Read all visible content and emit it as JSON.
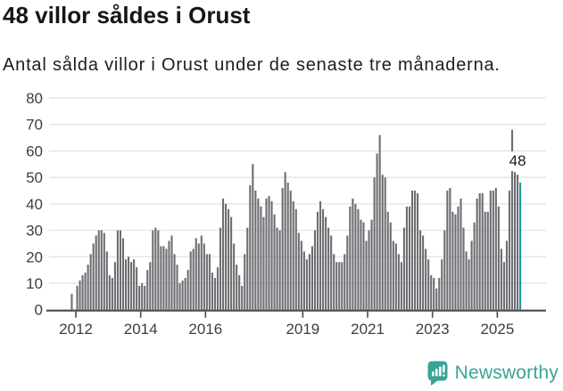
{
  "title": "48 villor såldes i Orust",
  "subtitle": "Antal sålda villor i Orust under de senaste tre månaderna.",
  "logo": {
    "text": "Newsworthy"
  },
  "colors": {
    "bar": "#6d6e72",
    "highlight": "#149b9d",
    "grid": "#e1e1e1",
    "axis": "#4a4a4a",
    "axis_text": "#3d3d3d",
    "logo": "#3ba398",
    "annotation_text": "#1a1a1a"
  },
  "chart_data": {
    "type": "bar",
    "title": "48 villor såldes i Orust",
    "xlabel": "",
    "ylabel": "",
    "x_start": "2011-11",
    "x_end": "2025-09",
    "x_ticks": [
      {
        "label": "2012",
        "month": 0
      },
      {
        "label": "2014",
        "month": 24
      },
      {
        "label": "2016",
        "month": 48
      },
      {
        "label": "2019",
        "month": 84
      },
      {
        "label": "2021",
        "month": 108
      },
      {
        "label": "2023",
        "month": 132
      },
      {
        "label": "2025",
        "month": 156
      }
    ],
    "y_ticks": [
      0,
      10,
      20,
      30,
      40,
      50,
      60,
      70,
      80
    ],
    "ylim": [
      0,
      80
    ],
    "grid": true,
    "values": [
      6,
      0,
      9,
      11,
      13,
      14,
      17,
      21,
      25,
      28,
      30,
      30,
      29,
      22,
      13,
      12,
      18,
      30,
      30,
      27,
      19,
      20,
      18,
      19,
      16,
      9,
      10,
      9,
      15,
      18,
      30,
      31,
      30,
      24,
      24,
      23,
      26,
      28,
      21,
      17,
      10,
      11,
      12,
      15,
      22,
      23,
      27,
      25,
      28,
      25,
      21,
      21,
      14,
      12,
      16,
      31,
      42,
      40,
      38,
      35,
      25,
      17,
      13,
      9,
      21,
      31,
      47,
      55,
      45,
      42,
      39,
      35,
      42,
      43,
      41,
      36,
      31,
      30,
      46,
      52,
      48,
      45,
      41,
      38,
      29,
      26,
      22,
      19,
      21,
      24,
      30,
      37,
      41,
      38,
      35,
      31,
      28,
      21,
      18,
      18,
      18,
      21,
      28,
      39,
      42,
      40,
      38,
      34,
      33,
      26,
      30,
      34,
      50,
      59,
      66,
      51,
      50,
      37,
      33,
      26,
      25,
      21,
      18,
      31,
      39,
      39,
      45,
      45,
      44,
      30,
      28,
      23,
      19,
      13,
      12,
      8,
      12,
      19,
      30,
      45,
      46,
      37,
      36,
      39,
      42,
      31,
      22,
      19,
      26,
      33,
      42,
      44,
      44,
      37,
      37,
      45,
      45,
      46,
      39,
      23,
      18,
      26,
      45,
      68,
      52,
      51,
      48
    ],
    "highlight_last_value": 48,
    "annotation_label": "48"
  }
}
